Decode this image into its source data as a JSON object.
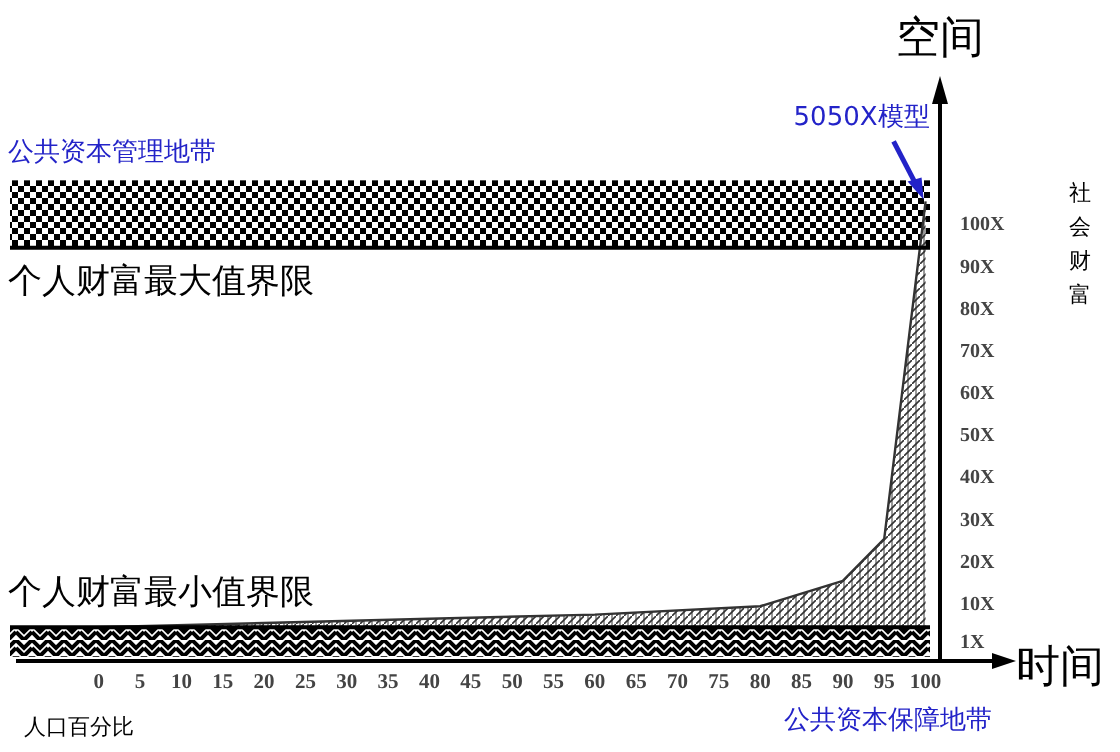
{
  "chart_data": {
    "type": "area",
    "xlabel": "人口百分比",
    "ylabel": "社会财富",
    "annotations": [
      "空间",
      "时间",
      {
        "text": "5050X模型",
        "x": 100,
        "y": 105
      }
    ],
    "x": [
      0,
      20,
      40,
      60,
      80,
      90,
      95,
      100
    ],
    "series": [
      {
        "color": "#333333",
        "values": [
          4,
          5,
          6,
          7,
          9,
          15,
          25,
          105
        ]
      }
    ],
    "xlim": [
      -10,
      109
    ],
    "xticks": [
      0,
      5,
      10,
      15,
      20,
      25,
      30,
      35,
      40,
      45,
      50,
      55,
      60,
      65,
      70,
      75,
      80,
      85,
      90,
      95,
      100
    ],
    "ylim": [
      -4,
      130
    ],
    "yticks": [
      {
        "value": 1,
        "label": "1X"
      },
      {
        "value": 10,
        "label": "10X"
      },
      {
        "value": 20,
        "label": "20X"
      },
      {
        "value": 30,
        "label": "30X"
      },
      {
        "value": 40,
        "label": "40X"
      },
      {
        "value": 50,
        "label": "50X"
      },
      {
        "value": 60,
        "label": "60X"
      },
      {
        "value": 70,
        "label": "70X"
      },
      {
        "value": 80,
        "label": "80X"
      },
      {
        "value": 90,
        "label": "90X"
      },
      {
        "value": 100,
        "label": "100X"
      }
    ],
    "bands": [
      {
        "axis": "y",
        "from": 94,
        "to": 110,
        "label": "公共资本管理地带",
        "color": "#000000"
      },
      {
        "axis": "y",
        "from": -3,
        "to": 4,
        "label": "公共资本保障地带",
        "color": "#000000"
      }
    ],
    "ref_lines": [
      {
        "axis": "y",
        "value": 94,
        "label": "个人财富最大值界限"
      },
      {
        "axis": "y",
        "value": 4,
        "label": "个人财富最小值界限"
      }
    ],
    "tick_labels": true
  }
}
